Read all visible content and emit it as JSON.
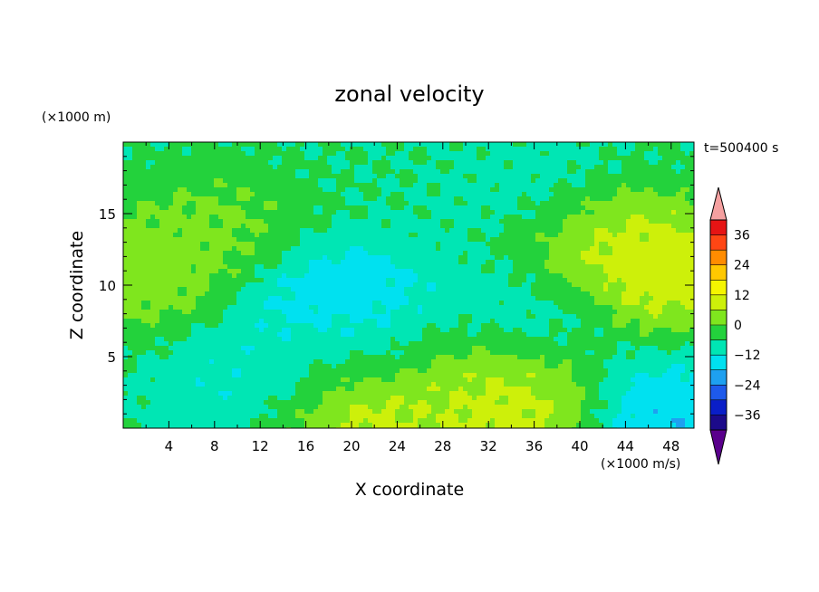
{
  "chart_data": {
    "type": "heatmap",
    "title": "zonal velocity",
    "xlabel": "X coordinate",
    "ylabel": "Z coordinate",
    "x_unit": "(×1000 m/s)",
    "y_unit": "(×1000 m)",
    "time_label": "t=500400 s",
    "xlim": [
      0,
      50
    ],
    "ylim": [
      0,
      20
    ],
    "x_ticks": [
      "4",
      "8",
      "12",
      "16",
      "20",
      "24",
      "28",
      "32",
      "36",
      "40",
      "44",
      "48"
    ],
    "y_ticks": [
      "5",
      "10",
      "15"
    ],
    "colorbar": {
      "tick_labels": [
        "36",
        "24",
        "12",
        "0",
        "−12",
        "−24",
        "−36"
      ],
      "levels": [
        -42,
        -36,
        -30,
        -24,
        -18,
        -12,
        -6,
        0,
        6,
        12,
        18,
        24,
        30,
        36,
        42
      ],
      "colors": [
        "#5a008c",
        "#1c0a8a",
        "#0a1ec8",
        "#1e5aeb",
        "#1ea0f0",
        "#00e1f0",
        "#00e6b4",
        "#23d23c",
        "#7fe61e",
        "#cdf00a",
        "#f5f500",
        "#ffc800",
        "#ff8c00",
        "#ff4614",
        "#e61414",
        "#f5a0a0"
      ]
    },
    "field_features": [
      {
        "x": 2,
        "z": 11,
        "u": 6
      },
      {
        "x": 8,
        "z": 14,
        "u": 3
      },
      {
        "x": 19,
        "z": 9,
        "u": -20
      },
      {
        "x": 20,
        "z": 6,
        "u": -8
      },
      {
        "x": 12,
        "z": 3,
        "u": -14
      },
      {
        "x": 20,
        "z": 1,
        "u": 14
      },
      {
        "x": 31,
        "z": 3,
        "u": 8
      },
      {
        "x": 36,
        "z": 1,
        "u": 14
      },
      {
        "x": 47,
        "z": 11,
        "u": 15
      },
      {
        "x": 43,
        "z": 13,
        "u": 9
      },
      {
        "x": 46,
        "z": 0.5,
        "u": -22
      },
      {
        "x": 35,
        "z": 17,
        "u": -9
      },
      {
        "x": 25,
        "z": 19,
        "u": -6
      },
      {
        "x": 35,
        "z": 8,
        "u": -10
      }
    ]
  }
}
